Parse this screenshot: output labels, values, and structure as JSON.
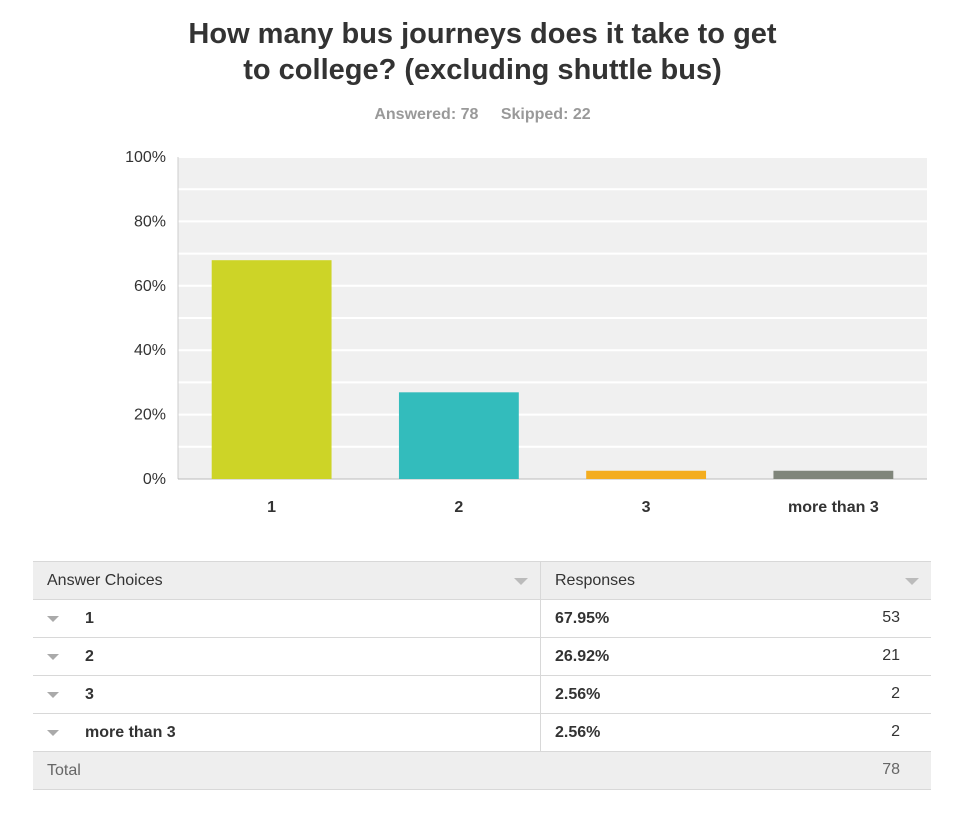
{
  "title_line1": "How many bus journeys does it take to get",
  "title_line2": "to college? (excluding shuttle bus)",
  "answered": "Answered: 78",
  "skipped": "Skipped: 22",
  "chart_data": {
    "type": "bar",
    "categories": [
      "1",
      "2",
      "3",
      "more than 3"
    ],
    "values": [
      67.95,
      26.92,
      2.56,
      2.56
    ],
    "colors": [
      "#cdd427",
      "#33bcbc",
      "#f4ad1f",
      "#80867b"
    ],
    "ylim": [
      0,
      100
    ],
    "yticks": [
      "0%",
      "20%",
      "40%",
      "60%",
      "80%",
      "100%"
    ],
    "grid": true,
    "title": "",
    "xlabel": "",
    "ylabel": ""
  },
  "table": {
    "header_choices": "Answer Choices",
    "header_responses": "Responses",
    "rows": [
      {
        "label": "1",
        "percent": "67.95%",
        "count": "53"
      },
      {
        "label": "2",
        "percent": "26.92%",
        "count": "21"
      },
      {
        "label": "3",
        "percent": "2.56%",
        "count": "2"
      },
      {
        "label": "more than 3",
        "percent": "2.56%",
        "count": "2"
      }
    ],
    "total_label": "Total",
    "total_count": "78"
  }
}
